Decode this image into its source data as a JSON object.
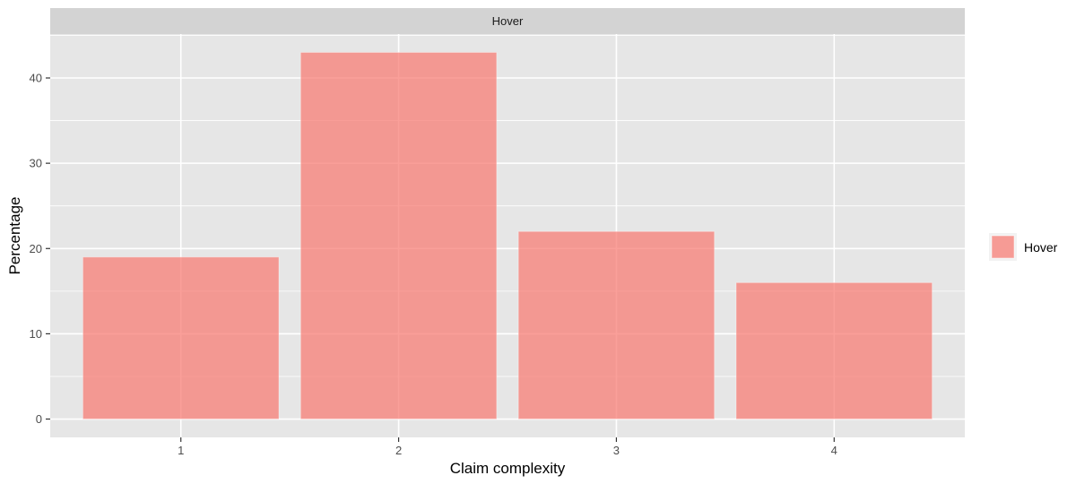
{
  "chart_data": {
    "type": "bar",
    "facet_label": "Hover",
    "categories": [
      "1",
      "2",
      "3",
      "4"
    ],
    "series": [
      {
        "name": "Hover",
        "values": [
          19,
          43,
          22,
          16
        ],
        "color": "#F8766D"
      }
    ],
    "xlabel": "Claim complexity",
    "ylabel": "Percentage",
    "ylim": [
      -2.15,
      45.15
    ],
    "yticks": [
      0,
      10,
      20,
      30,
      40
    ],
    "grid": true,
    "legend": {
      "position": "right",
      "entries": [
        "Hover"
      ]
    },
    "colors": {
      "panel": "#E6E6E6",
      "strip": "#D3D3D3",
      "grid": "#FFFFFF",
      "bar": "#F8766D"
    }
  }
}
